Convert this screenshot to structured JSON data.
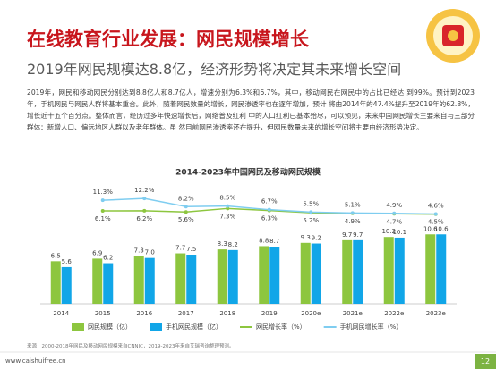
{
  "title": "在线教育行业发展：网民规模增长",
  "subtitle": "2019年网民规模达8.8亿，经济形势将决定其未来增长空间",
  "paragraph": "2019年，网民和移动网民分别达到8.8亿人和8.7亿人，增速分别为6.3%和6.7%，其中，移动网民在网民中的占比已经达 到99%。预计到2023年，手机网民与网民人群将基本重合。此外，随着网民数量的增长，网民渗透率也在逐年增加，预计 将由2014年的47.4%提升至2019年的62.8%，增长近十五个百分点。整体而言，经历过多年快速增长后，网络普及红利 中的人口红利已基本殆尽，可以预见，未来中国网民增长主要来自与三部分群体：新增人口、偏远地区人群以及老年群体。虽 然目前网民渗透率还在提升，但网民数量未来的增长空间将主要由经济形势决定。",
  "source": "来源：2000-2018年网民及移动网民规模来自CNNIC，2019-2023年来自艾瑞咨询整理预测。",
  "site": "www.caishuifree.cn",
  "page_number": "12",
  "chart_data": {
    "type": "bar_line",
    "title": "2014-2023年中国网民及移动网民规模",
    "categories": [
      "2014",
      "2015",
      "2016",
      "2017",
      "2018",
      "2019",
      "2020e",
      "2021e",
      "2022e",
      "2023e"
    ],
    "ylim": [
      0,
      12
    ],
    "y2lim": [
      0,
      14
    ],
    "series": [
      {
        "name": "网民规模（亿）",
        "type": "bar",
        "color": "#8dc63f",
        "values": [
          6.5,
          6.9,
          7.3,
          7.7,
          8.3,
          8.8,
          9.3,
          9.7,
          10.2,
          10.6
        ]
      },
      {
        "name": "手机网民规模（亿）",
        "type": "bar",
        "color": "#11a6e8",
        "values": [
          5.6,
          6.2,
          7.0,
          7.5,
          8.2,
          8.7,
          9.2,
          9.7,
          10.1,
          10.6
        ],
        "value_labels": [
          "5.6",
          "6.2",
          "7.0",
          "7.5",
          "8.2",
          "8.7",
          "9.2",
          "9.7",
          "10.1",
          "10.6"
        ]
      },
      {
        "name": "网民增长率（%）",
        "type": "line",
        "axis": "y2",
        "color": "#8dc63f",
        "values": [
          null,
          6.1,
          6.2,
          5.6,
          7.3,
          6.3,
          5.2,
          4.9,
          4.7,
          4.5
        ],
        "value_labels": [
          null,
          "6.1%",
          "6.2%",
          "5.6%",
          "7.3%",
          "6.3%",
          "5.2%",
          "4.9%",
          "4.7%",
          "4.5%"
        ]
      },
      {
        "name": "手机网民增长率（%）",
        "type": "line",
        "axis": "y2",
        "color": "#7fcdf0",
        "values": [
          null,
          11.3,
          12.2,
          8.2,
          8.5,
          6.7,
          5.5,
          5.1,
          4.9,
          4.6
        ],
        "value_labels": [
          null,
          "11.3%",
          "12.2%",
          "8.2%",
          "8.5%",
          "6.7%",
          "5.5%",
          "5.1%",
          "4.9%",
          "4.6%"
        ]
      }
    ]
  }
}
